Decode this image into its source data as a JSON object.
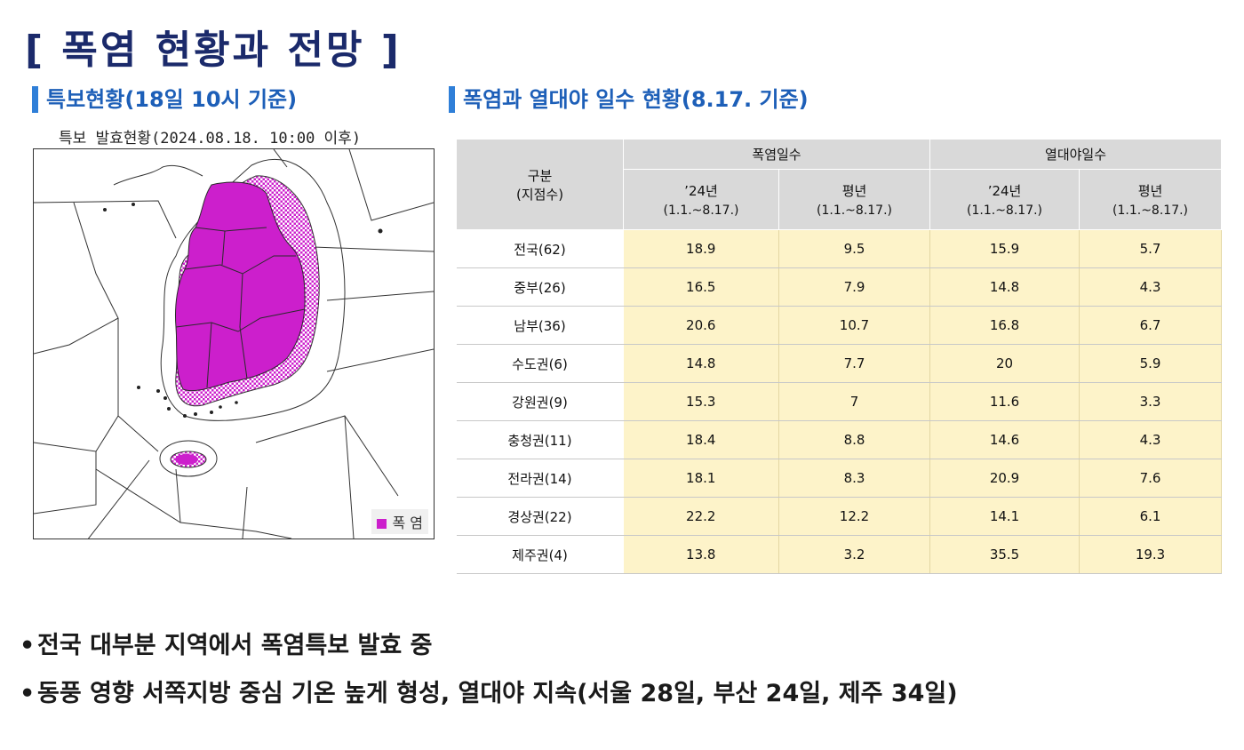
{
  "page": {
    "title": "[ 폭염 현황과 전망 ]"
  },
  "left_section": {
    "title": "특보현황(18일 10시 기준)",
    "map_caption": "특보 발효현황(2024.08.18. 10:00 이후)",
    "legend_label": "폭 염",
    "warning_color": "#cc1fcc"
  },
  "right_section": {
    "title": "폭염과 열대야 일수 현황(8.17. 기준)"
  },
  "table": {
    "region_header_line1": "구분",
    "region_header_line2": "(지점수)",
    "group_headers": [
      "폭염일수",
      "열대야일수"
    ],
    "sub_headers": [
      {
        "line1": "’24년",
        "line2": "(1.1.~8.17.)"
      },
      {
        "line1": "평년",
        "line2": "(1.1.~8.17.)"
      },
      {
        "line1": "’24년",
        "line2": "(1.1.~8.17.)"
      },
      {
        "line1": "평년",
        "line2": "(1.1.~8.17.)"
      }
    ],
    "rows": [
      {
        "region": "전국(62)",
        "values": [
          "18.9",
          "9.5",
          "15.9",
          "5.7"
        ]
      },
      {
        "region": "중부(26)",
        "values": [
          "16.5",
          "7.9",
          "14.8",
          "4.3"
        ]
      },
      {
        "region": "남부(36)",
        "values": [
          "20.6",
          "10.7",
          "16.8",
          "6.7"
        ]
      },
      {
        "region": "수도권(6)",
        "values": [
          "14.8",
          "7.7",
          "20",
          "5.9"
        ]
      },
      {
        "region": "강원권(9)",
        "values": [
          "15.3",
          "7",
          "11.6",
          "3.3"
        ]
      },
      {
        "region": "충청권(11)",
        "values": [
          "18.4",
          "8.8",
          "14.6",
          "4.3"
        ]
      },
      {
        "region": "전라권(14)",
        "values": [
          "18.1",
          "8.3",
          "20.9",
          "7.6"
        ]
      },
      {
        "region": "경상권(22)",
        "values": [
          "22.2",
          "12.2",
          "14.1",
          "6.1"
        ]
      },
      {
        "region": "제주권(4)",
        "values": [
          "13.8",
          "3.2",
          "35.5",
          "19.3"
        ]
      }
    ]
  },
  "bullets": [
    "전국 대부분 지역에서 폭염특보 발효 중",
    "동풍 영향 서쪽지방 중심 기온 높게 형성, 열대야 지속(서울 28일, 부산 24일, 제주 34일)"
  ]
}
